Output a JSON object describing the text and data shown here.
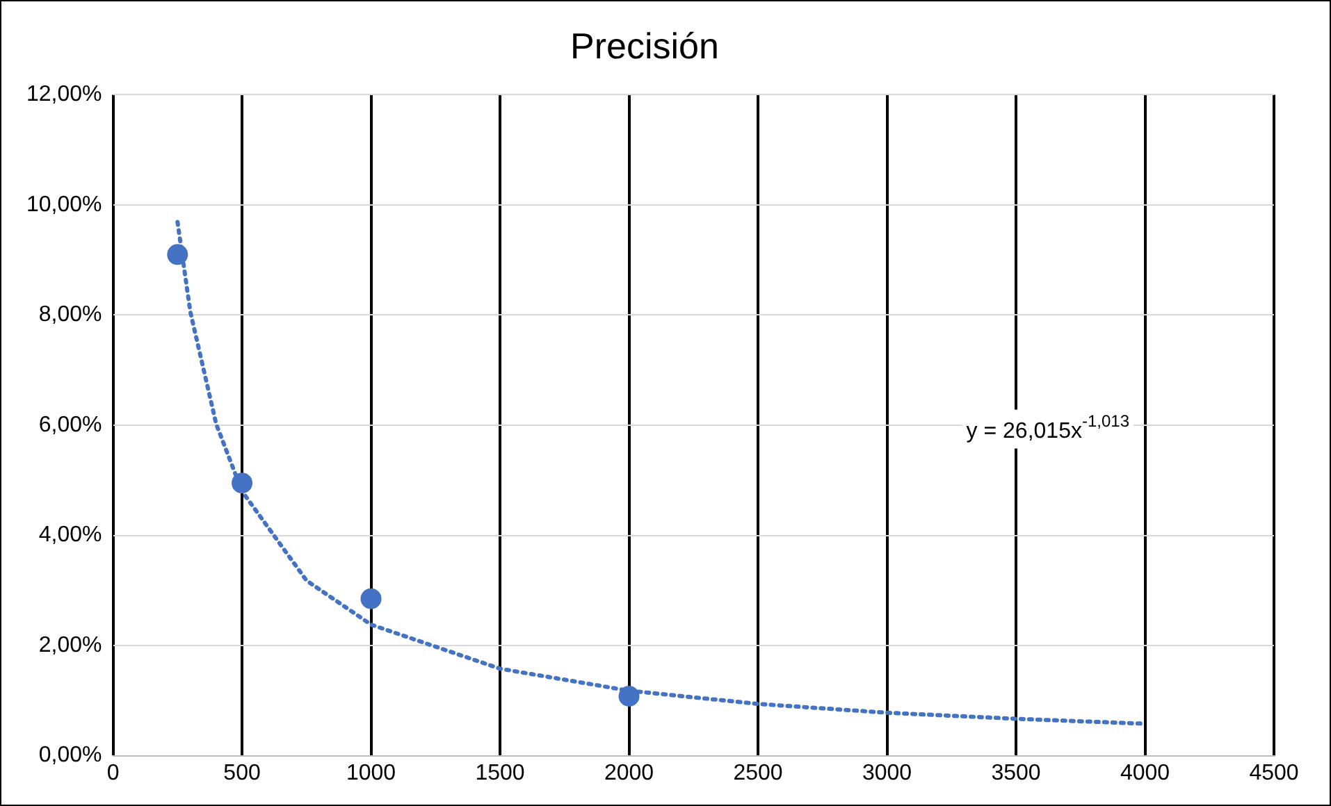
{
  "chart_data": {
    "type": "scatter",
    "title": "Precisión",
    "x": [
      250,
      500,
      1000,
      2000
    ],
    "series": [
      {
        "color": "#4472c4",
        "marker": "circle",
        "values": [
          9.1,
          4.95,
          2.85,
          1.08
        ]
      },
      {
        "type": "line",
        "color": "#4472c4",
        "line_style": "dotted",
        "marker": "none",
        "x": [
          250,
          300,
          400,
          500,
          750,
          1000,
          1500,
          2000,
          2500,
          3000,
          3500,
          4000
        ],
        "values": [
          9.69,
          8.05,
          6.02,
          4.8,
          3.18,
          2.38,
          1.58,
          1.18,
          0.94,
          0.78,
          0.67,
          0.58
        ]
      }
    ],
    "xlim": [
      0,
      4500
    ],
    "xticks": [
      0,
      500,
      1000,
      1500,
      2000,
      2500,
      3000,
      3500,
      4000,
      4500
    ],
    "ylim": [
      0,
      12
    ],
    "yticks": [
      {
        "value": 0,
        "label": "0,00%"
      },
      {
        "value": 2,
        "label": "2,00%"
      },
      {
        "value": 4,
        "label": "4,00%"
      },
      {
        "value": 6,
        "label": "6,00%"
      },
      {
        "value": 8,
        "label": "8,00%"
      },
      {
        "value": 10,
        "label": "10,00%"
      },
      {
        "value": 12,
        "label": "12,00%"
      }
    ],
    "grid": true,
    "legend": false,
    "annotations": [
      "y = 26,015x$^{-1,013}$"
    ]
  }
}
